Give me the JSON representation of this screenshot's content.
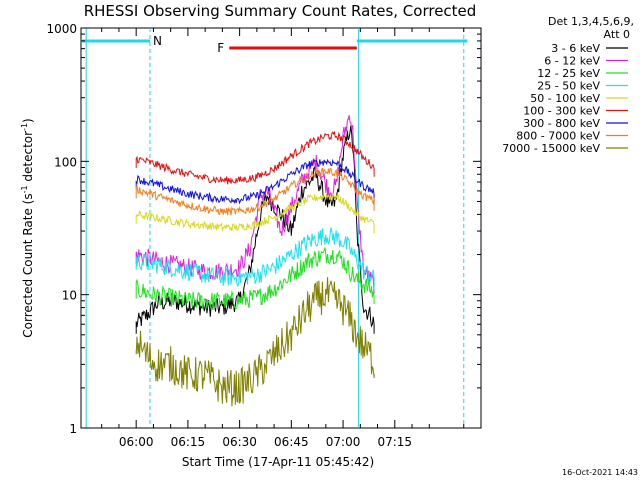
{
  "chart_data": {
    "type": "line",
    "title": "RHESSI Observing Summary Count Rates, Corrected",
    "xlabel": "Start Time (17-Apr-11 05:45:42)",
    "ylabel_main": "Corrected Count Rate (s",
    "ylabel_sup1": "-1",
    "ylabel_mid": " detector",
    "ylabel_sup2": "-1",
    "ylabel_end": ")",
    "yscale": "log",
    "ylim": [
      1,
      1000
    ],
    "xlim_minutes": [
      -16,
      100
    ],
    "x_ticks": [
      {
        "label": "06:00",
        "min": 0
      },
      {
        "label": "06:15",
        "min": 15
      },
      {
        "label": "06:30",
        "min": 30
      },
      {
        "label": "06:45",
        "min": 45
      },
      {
        "label": "07:00",
        "min": 60
      },
      {
        "label": "07:15",
        "min": 75
      }
    ],
    "y_ticks": [
      {
        "label": "1",
        "value": 1
      },
      {
        "label": "10",
        "value": 10
      },
      {
        "label": "100",
        "value": 100
      },
      {
        "label": "1000",
        "value": 1000
      }
    ],
    "legend_title_1": "Det 1,3,4,5,6,9,",
    "legend_title_2": "Att 0",
    "flags": [
      {
        "label": "N",
        "color": "#22d5e8"
      },
      {
        "label": "F",
        "color": "#e01010"
      }
    ],
    "flag_ranges": {
      "night_1": [
        -16,
        4
      ],
      "flare": [
        27,
        64
      ],
      "night_2": [
        64,
        96
      ],
      "boundaries": [
        -14.5,
        4,
        64.5,
        95
      ]
    },
    "timestamp": "16-Oct-2021 14:43",
    "series": [
      {
        "name": "3 - 6 keV",
        "color": "#000000",
        "x": [
          0,
          3,
          6,
          10,
          15,
          20,
          25,
          30,
          33,
          36,
          38,
          42,
          45,
          48,
          52,
          56,
          58,
          60,
          62,
          63,
          64,
          66,
          68,
          69
        ],
        "y": [
          6,
          7,
          8.5,
          9,
          8.5,
          8,
          8,
          9,
          15,
          40,
          55,
          40,
          30,
          60,
          80,
          45,
          50,
          110,
          180,
          120,
          30,
          8,
          7,
          6
        ]
      },
      {
        "name": "6 - 12 keV",
        "color": "#e020e0",
        "x": [
          0,
          3,
          6,
          10,
          15,
          20,
          25,
          30,
          33,
          36,
          38,
          42,
          45,
          48,
          52,
          56,
          58,
          60,
          62,
          63,
          64,
          66,
          68,
          69
        ],
        "y": [
          20,
          19,
          18,
          17,
          16,
          15,
          15,
          16,
          22,
          55,
          60,
          30,
          45,
          70,
          100,
          60,
          65,
          150,
          230,
          150,
          50,
          15,
          13,
          12
        ]
      },
      {
        "name": "12 - 25 keV",
        "color": "#20e020",
        "x": [
          0,
          5,
          10,
          15,
          20,
          25,
          30,
          35,
          40,
          45,
          50,
          55,
          58,
          60,
          62,
          64,
          66,
          68,
          69
        ],
        "y": [
          11,
          10,
          9.5,
          9,
          9,
          9,
          9,
          9.5,
          11,
          14,
          18,
          20,
          20,
          18,
          15,
          13,
          12,
          11,
          10
        ]
      },
      {
        "name": "25 - 50 keV",
        "color": "#20e0f0",
        "x": [
          0,
          5,
          10,
          15,
          20,
          25,
          30,
          35,
          40,
          45,
          50,
          55,
          58,
          60,
          62,
          64,
          66,
          68,
          69
        ],
        "y": [
          18,
          17,
          16,
          15,
          14,
          13.5,
          13.5,
          14,
          16,
          20,
          25,
          28,
          27,
          25,
          22,
          18,
          15,
          14,
          13
        ]
      },
      {
        "name": "50 - 100 keV",
        "color": "#d8d820",
        "x": [
          0,
          5,
          10,
          15,
          20,
          25,
          30,
          35,
          40,
          45,
          50,
          55,
          58,
          60,
          62,
          64,
          66,
          68,
          69
        ],
        "y": [
          40,
          38,
          36,
          34,
          33,
          32,
          32,
          34,
          38,
          45,
          52,
          55,
          54,
          50,
          45,
          40,
          37,
          35,
          34
        ]
      },
      {
        "name": "100 - 300 keV",
        "color": "#e01010",
        "x": [
          0,
          5,
          10,
          15,
          20,
          25,
          30,
          35,
          40,
          45,
          50,
          55,
          58,
          60,
          62,
          64,
          66,
          68,
          69
        ],
        "y": [
          105,
          96,
          87,
          80,
          75,
          72,
          72,
          76,
          88,
          110,
          135,
          155,
          155,
          148,
          135,
          120,
          105,
          95,
          90
        ]
      },
      {
        "name": "300 - 800 keV",
        "color": "#1010e0",
        "x": [
          0,
          5,
          10,
          15,
          20,
          25,
          30,
          35,
          40,
          45,
          50,
          55,
          58,
          60,
          62,
          64,
          66,
          68,
          69
        ],
        "y": [
          74,
          68,
          62,
          57,
          54,
          52,
          52,
          55,
          65,
          80,
          95,
          100,
          97,
          90,
          80,
          72,
          65,
          61,
          59
        ]
      },
      {
        "name": "800 - 7000 keV",
        "color": "#f08020",
        "x": [
          0,
          5,
          10,
          15,
          20,
          25,
          30,
          35,
          40,
          45,
          50,
          55,
          58,
          60,
          62,
          64,
          66,
          68,
          69
        ],
        "y": [
          62,
          56,
          51,
          47,
          44,
          42,
          42,
          45,
          52,
          65,
          78,
          85,
          82,
          76,
          68,
          60,
          55,
          52,
          50
        ]
      },
      {
        "name": "7000 - 15000 keV",
        "color": "#808000",
        "x": [
          0,
          3,
          6,
          10,
          15,
          20,
          25,
          30,
          35,
          40,
          45,
          50,
          53,
          55,
          58,
          60,
          62,
          64,
          66,
          68,
          69
        ],
        "y": [
          4.5,
          3.5,
          3,
          3,
          2.5,
          2.5,
          2,
          2,
          2.5,
          3.5,
          5,
          8,
          9.5,
          10,
          9,
          8,
          6.5,
          5,
          4,
          3.5,
          3
        ]
      }
    ]
  }
}
